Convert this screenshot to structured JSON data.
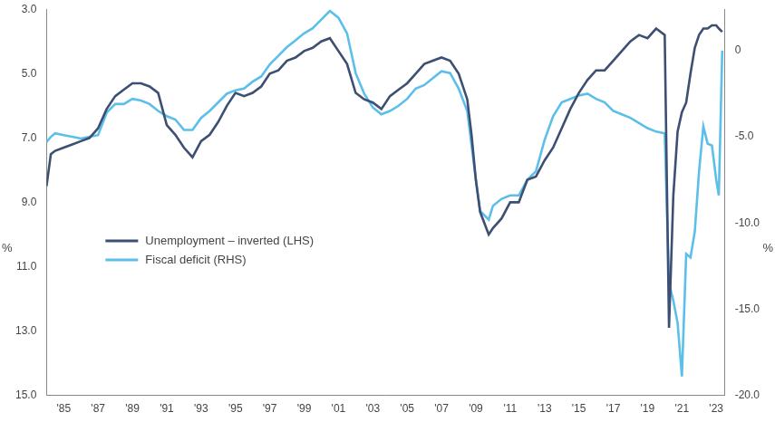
{
  "chart_data": {
    "type": "line",
    "ylabel": "%",
    "y2label": "%",
    "legend": "left",
    "grid": false,
    "x": [
      1984,
      1984.25,
      1984.5,
      1985,
      1985.5,
      1986,
      1986.5,
      1987,
      1987.5,
      1988,
      1988.5,
      1989,
      1989.5,
      1990,
      1990.5,
      1991,
      1991.5,
      1992,
      1992.5,
      1993,
      1993.5,
      1994,
      1994.5,
      1995,
      1995.5,
      1996,
      1996.5,
      1997,
      1997.5,
      1998,
      1998.5,
      1999,
      1999.5,
      2000,
      2000.5,
      2001,
      2001.5,
      2002,
      2002.5,
      2003,
      2003.5,
      2004,
      2004.5,
      2005,
      2005.5,
      2006,
      2006.5,
      2007,
      2007.5,
      2008,
      2008.5,
      2008.75,
      2009,
      2009.25,
      2009.75,
      2010,
      2010.5,
      2011,
      2011.5,
      2012,
      2012.5,
      2013,
      2013.5,
      2014,
      2014.5,
      2015,
      2015.5,
      2016,
      2016.5,
      2017,
      2017.5,
      2018,
      2018.5,
      2019,
      2019.5,
      2020,
      2020.25,
      2020.5,
      2020.75,
      2021,
      2021.25,
      2021.5,
      2021.75,
      2022,
      2022.25,
      2022.5,
      2022.75,
      2023,
      2023.15,
      2023.35
    ],
    "xlim": [
      1984,
      2023.5
    ],
    "xticks": [
      {
        "value": 1985,
        "label": "'85"
      },
      {
        "value": 1987,
        "label": "'87"
      },
      {
        "value": 1989,
        "label": "'89"
      },
      {
        "value": 1991,
        "label": "'91"
      },
      {
        "value": 1993,
        "label": "'93"
      },
      {
        "value": 1995,
        "label": "'95"
      },
      {
        "value": 1997,
        "label": "'97"
      },
      {
        "value": 1999,
        "label": "'99"
      },
      {
        "value": 2001,
        "label": "'01"
      },
      {
        "value": 2003,
        "label": "'03"
      },
      {
        "value": 2005,
        "label": "'05"
      },
      {
        "value": 2007,
        "label": "'07"
      },
      {
        "value": 2009,
        "label": "'09"
      },
      {
        "value": 2011,
        "label": "'11"
      },
      {
        "value": 2013,
        "label": "'13"
      },
      {
        "value": 2015,
        "label": "'15"
      },
      {
        "value": 2017,
        "label": "'17"
      },
      {
        "value": 2019,
        "label": "'19"
      },
      {
        "value": 2021,
        "label": "'21"
      },
      {
        "value": 2023,
        "label": "'23"
      }
    ],
    "ylim": [
      15,
      3
    ],
    "yticks": [
      {
        "value": 3,
        "label": "3.0"
      },
      {
        "value": 5,
        "label": "5.0"
      },
      {
        "value": 7,
        "label": "7.0"
      },
      {
        "value": 9,
        "label": "9.0"
      },
      {
        "value": 11,
        "label": "11.0"
      },
      {
        "value": 13,
        "label": "13.0"
      },
      {
        "value": 15,
        "label": "15.0"
      }
    ],
    "y2lim": [
      -20,
      2.4
    ],
    "y2ticks": [
      {
        "value": -20,
        "label": "-20.0"
      },
      {
        "value": -15,
        "label": "-15.0"
      },
      {
        "value": -10,
        "label": "-10.0"
      },
      {
        "value": -5,
        "label": "-5.0"
      },
      0
    ],
    "series": [
      {
        "name": "Unemployment – inverted (LHS)",
        "color": "#3d4f72",
        "axis": "y",
        "values": [
          8.5,
          7.5,
          7.4,
          7.3,
          7.2,
          7.1,
          7.0,
          6.7,
          6.1,
          5.7,
          5.5,
          5.3,
          5.3,
          5.4,
          5.6,
          6.6,
          6.9,
          7.3,
          7.6,
          7.1,
          6.9,
          6.5,
          6.0,
          5.6,
          5.7,
          5.6,
          5.4,
          5.0,
          4.9,
          4.6,
          4.5,
          4.3,
          4.2,
          4.0,
          3.9,
          4.3,
          4.7,
          5.6,
          5.8,
          5.9,
          6.1,
          5.7,
          5.5,
          5.3,
          5.0,
          4.7,
          4.6,
          4.5,
          4.6,
          5.0,
          5.8,
          6.9,
          8.3,
          9.3,
          10.0,
          9.8,
          9.5,
          9.0,
          9.0,
          8.3,
          8.2,
          7.7,
          7.3,
          6.7,
          6.1,
          5.6,
          5.2,
          4.9,
          4.9,
          4.6,
          4.3,
          4.0,
          3.8,
          3.9,
          3.6,
          3.8,
          12.9,
          8.8,
          6.8,
          6.2,
          5.9,
          5.0,
          4.2,
          3.8,
          3.6,
          3.6,
          3.5,
          3.5,
          3.6,
          3.7
        ]
      },
      {
        "name": "Fiscal deficit (RHS)",
        "color": "#5cbfea",
        "axis": "y2",
        "values": [
          -5.3,
          -5.0,
          -4.8,
          -4.9,
          -5.0,
          -5.1,
          -5.0,
          -4.9,
          -3.6,
          -3.1,
          -3.1,
          -2.8,
          -2.9,
          -3.1,
          -3.5,
          -3.8,
          -4.0,
          -4.6,
          -4.6,
          -3.9,
          -3.5,
          -3.0,
          -2.5,
          -2.3,
          -2.2,
          -1.8,
          -1.5,
          -0.8,
          -0.3,
          0.2,
          0.6,
          1.0,
          1.3,
          1.8,
          2.3,
          1.9,
          1.0,
          -1.3,
          -2.5,
          -3.3,
          -3.7,
          -3.5,
          -3.2,
          -2.8,
          -2.2,
          -2.0,
          -1.6,
          -1.2,
          -1.3,
          -2.2,
          -3.5,
          -5.5,
          -7.5,
          -9.3,
          -9.8,
          -9.0,
          -8.6,
          -8.4,
          -8.4,
          -7.5,
          -7.0,
          -5.2,
          -3.8,
          -3.0,
          -2.8,
          -2.6,
          -2.5,
          -2.8,
          -3.0,
          -3.5,
          -3.7,
          -3.9,
          -4.2,
          -4.5,
          -4.7,
          -4.8,
          -13.5,
          -14.5,
          -15.8,
          -18.9,
          -11.8,
          -12.0,
          -10.5,
          -7.0,
          -4.4,
          -5.4,
          -5.5,
          -7.5,
          -8.4,
          0.0
        ]
      }
    ]
  }
}
